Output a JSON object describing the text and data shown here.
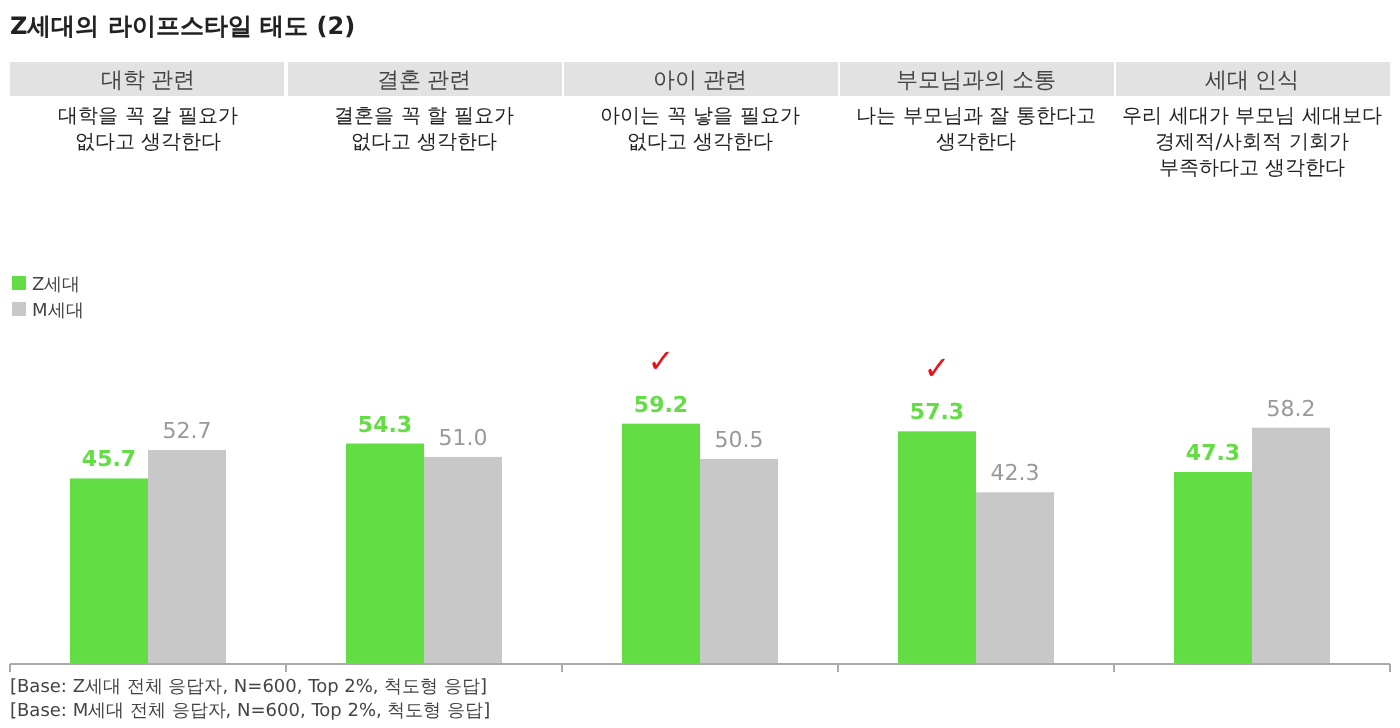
{
  "chart_data": {
    "type": "bar",
    "title": "Z세대의 라이프스타일 태도 (2)",
    "categories": [
      "대학 관련",
      "결혼 관련",
      "아이 관련",
      "부모님과의 소통",
      "세대 인식"
    ],
    "series": [
      {
        "name": "Z세대",
        "color": "#62dd43",
        "values": [
          45.7,
          54.3,
          59.2,
          57.3,
          47.3
        ],
        "value_labels": [
          "45.7",
          "54.3",
          "59.2",
          "57.3",
          "47.3"
        ]
      },
      {
        "name": "M세대",
        "color": "#c8c8c8",
        "values": [
          52.7,
          51.0,
          50.5,
          42.3,
          58.2
        ],
        "value_labels": [
          "52.7",
          "51.0",
          "50.5",
          "42.3",
          "58.2"
        ]
      }
    ],
    "tick_labels": "x",
    "legend": "top left",
    "annotations": [
      "대학을 꼭 갈 필요가\n없다고 생각한다",
      "결혼을 꼭 할 필요가\n없다고 생각한다",
      "아이는 꼭 낳을 필요가\n없다고 생각한다",
      "나는 부모님과 잘 통한다고\n생각한다",
      "우리 세대가 부모님 세대보다\n경제적/사회적 기회가\n부족하다고 생각한다",
      {
        "text": "✓",
        "x": "아이 관련",
        "y": 59.2
      },
      {
        "text": "✓",
        "x": "부모님과의 소통",
        "y": 57.3
      },
      "[Base: Z세대 전체 응답자, N=600, Top 2%, 척도형 응답]",
      "[Base: M세대 전체 응답자, N=600, Top 2%, 척도형 응답]"
    ]
  }
}
